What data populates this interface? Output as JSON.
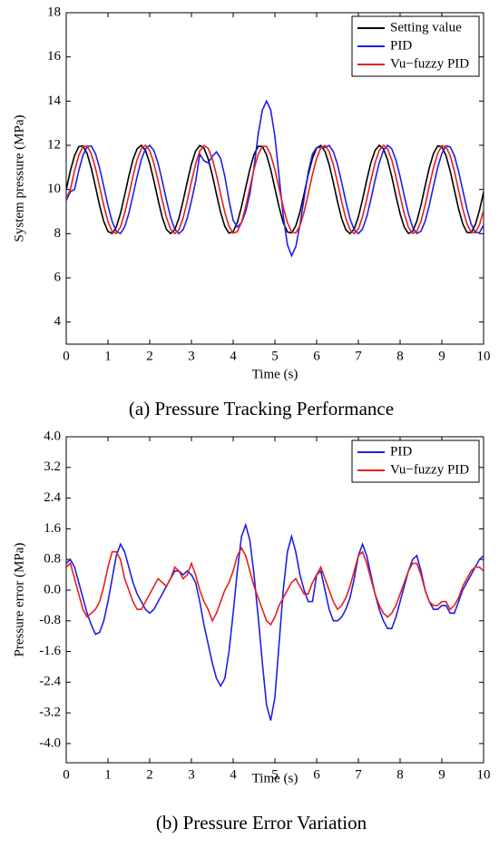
{
  "chart_data": [
    {
      "type": "line",
      "caption": "(a) Pressure Tracking Performance",
      "xlabel": "Time (s)",
      "ylabel": "System pressure (MPa)",
      "xlim": [
        0,
        10
      ],
      "xticks": [
        0,
        1,
        2,
        3,
        4,
        5,
        6,
        7,
        8,
        9,
        10
      ],
      "ylim": [
        3,
        18
      ],
      "yticks": [
        4,
        6,
        8,
        10,
        12,
        14,
        16,
        18
      ],
      "legend": "upper right",
      "grid": false,
      "x": [
        0,
        0.1,
        0.2,
        0.3,
        0.4,
        0.5,
        0.6,
        0.7,
        0.8,
        0.9,
        1,
        1.1,
        1.2,
        1.3,
        1.4,
        1.5,
        1.6,
        1.7,
        1.8,
        1.9,
        2,
        2.1,
        2.2,
        2.3,
        2.4,
        2.5,
        2.6,
        2.7,
        2.8,
        2.9,
        3,
        3.1,
        3.2,
        3.3,
        3.4,
        3.5,
        3.6,
        3.7,
        3.8,
        3.9,
        4,
        4.1,
        4.2,
        4.3,
        4.4,
        4.5,
        4.6,
        4.7,
        4.8,
        4.9,
        5,
        5.1,
        5.2,
        5.3,
        5.4,
        5.5,
        5.6,
        5.7,
        5.8,
        5.9,
        6,
        6.1,
        6.2,
        6.3,
        6.4,
        6.5,
        6.6,
        6.7,
        6.8,
        6.9,
        7,
        7.1,
        7.2,
        7.3,
        7.4,
        7.5,
        7.6,
        7.7,
        7.8,
        7.9,
        8,
        8.1,
        8.2,
        8.3,
        8.4,
        8.5,
        8.6,
        8.7,
        8.8,
        8.9,
        9,
        9.1,
        9.2,
        9.3,
        9.4,
        9.5,
        9.6,
        9.7,
        9.8,
        9.9,
        10
      ],
      "series": [
        {
          "name": "Setting value",
          "color": "#000000",
          "values": [
            10,
            10.85,
            11.54,
            11.94,
            11.97,
            11.62,
            10.97,
            10.13,
            9.27,
            8.55,
            8.1,
            8.01,
            8.3,
            8.92,
            9.74,
            10.6,
            11.36,
            11.85,
            12.0,
            11.76,
            11.19,
            10.4,
            9.53,
            8.74,
            8.2,
            8.0,
            8.18,
            8.7,
            9.48,
            10.35,
            11.15,
            11.74,
            11.99,
            11.87,
            11.39,
            10.65,
            9.79,
            8.96,
            8.33,
            8.02,
            8.09,
            8.51,
            9.22,
            10.08,
            10.92,
            11.59,
            11.95,
            11.95,
            11.57,
            10.9,
            10.05,
            9.2,
            8.5,
            8.08,
            8.03,
            8.35,
            8.98,
            9.81,
            10.68,
            11.41,
            11.88,
            11.99,
            11.72,
            11.13,
            10.32,
            9.45,
            8.68,
            8.17,
            8.0,
            8.21,
            8.76,
            9.55,
            10.42,
            11.21,
            11.77,
            12.0,
            11.84,
            11.34,
            10.58,
            9.71,
            8.9,
            8.29,
            8.01,
            8.11,
            8.56,
            9.29,
            10.16,
            10.99,
            11.63,
            11.97,
            11.93,
            11.53,
            10.83,
            9.98,
            9.13,
            8.45,
            8.06,
            8.04,
            8.39,
            9.05,
            9.88
          ]
        },
        {
          "name": "PID",
          "color": "#1f1fe6",
          "values": [
            9.5,
            9.9,
            10,
            10.85,
            11.54,
            11.94,
            11.97,
            11.62,
            10.97,
            10.13,
            9.27,
            8.55,
            8.1,
            8.01,
            8.3,
            8.92,
            9.74,
            10.6,
            11.36,
            11.85,
            12.0,
            11.76,
            11.19,
            10.4,
            9.53,
            8.74,
            8.2,
            8.0,
            8.18,
            8.7,
            9.48,
            10.35,
            11.6,
            11.3,
            11.2,
            11.5,
            11.7,
            11.4,
            10.6,
            9.5,
            8.6,
            8.3,
            8.5,
            9.0,
            9.8,
            11.0,
            12.5,
            13.6,
            14.0,
            13.6,
            12.4,
            10.6,
            8.8,
            7.5,
            7.0,
            7.4,
            8.4,
            9.6,
            10.8,
            11.6,
            11.9,
            11.9,
            11.9,
            11.99,
            11.72,
            11.13,
            10.32,
            9.45,
            8.68,
            8.17,
            8.0,
            8.21,
            8.76,
            9.55,
            10.42,
            11.21,
            11.77,
            12.0,
            11.84,
            11.34,
            10.58,
            9.71,
            8.9,
            8.29,
            8.01,
            8.11,
            8.56,
            9.29,
            10.16,
            10.99,
            11.63,
            11.97,
            11.93,
            11.53,
            10.83,
            9.98,
            9.13,
            8.45,
            8.06,
            8.04,
            8.39
          ]
        },
        {
          "name": "Vu−fuzzy PID",
          "color": "#e61f1f",
          "values": [
            9.6,
            10,
            10.85,
            11.54,
            11.94,
            11.97,
            11.62,
            10.97,
            10.13,
            9.27,
            8.55,
            8.1,
            8.01,
            8.3,
            8.92,
            9.74,
            10.6,
            11.36,
            11.85,
            12.0,
            11.76,
            11.19,
            10.4,
            9.53,
            8.74,
            8.2,
            8.0,
            8.18,
            8.7,
            9.48,
            10.35,
            11.15,
            11.74,
            11.99,
            11.87,
            11.39,
            10.65,
            9.79,
            8.96,
            8.33,
            8.02,
            8.09,
            8.51,
            9.22,
            10.08,
            10.92,
            11.59,
            11.95,
            11.95,
            11.57,
            10.9,
            10.05,
            9.2,
            8.5,
            8.08,
            8.03,
            8.35,
            8.98,
            9.81,
            10.68,
            11.41,
            11.88,
            11.99,
            11.72,
            11.13,
            10.32,
            9.45,
            8.68,
            8.17,
            8.0,
            8.21,
            8.76,
            9.55,
            10.42,
            11.21,
            11.77,
            12.0,
            11.84,
            11.34,
            10.58,
            9.71,
            8.9,
            8.29,
            8.01,
            8.11,
            8.56,
            9.29,
            10.16,
            10.99,
            11.63,
            11.97,
            11.93,
            11.53,
            10.83,
            9.98,
            9.13,
            8.45,
            8.06,
            8.04,
            8.39,
            9.05
          ]
        }
      ]
    },
    {
      "type": "line",
      "caption": "(b) Pressure Error Variation",
      "xlabel": "Time (s)",
      "ylabel": "Pressure error (MPa)",
      "xlim": [
        0,
        10
      ],
      "xticks": [
        0,
        1,
        2,
        3,
        4,
        5,
        6,
        7,
        8,
        9,
        10
      ],
      "ylim": [
        -4.5,
        4.0
      ],
      "yticks": [
        {
          "value": 4.0,
          "label": "4.0"
        },
        {
          "value": 3.2,
          "label": "3.2"
        },
        {
          "value": 2.4,
          "label": "2.4"
        },
        {
          "value": 1.6,
          "label": "1.6"
        },
        {
          "value": 0.8,
          "label": "0.8"
        },
        {
          "value": 0,
          "label": "0.0"
        },
        {
          "value": -0.8,
          "label": "-0.8"
        },
        {
          "value": -1.6,
          "label": "-1.6"
        },
        {
          "value": -2.4,
          "label": "-2.4"
        },
        {
          "value": -3.2,
          "label": "-3.2"
        },
        {
          "value": -4.0,
          "label": "-4.0"
        }
      ],
      "legend": "upper right",
      "grid": false,
      "x": [
        0,
        0.1,
        0.2,
        0.3,
        0.4,
        0.5,
        0.6,
        0.7,
        0.8,
        0.9,
        1,
        1.1,
        1.2,
        1.3,
        1.4,
        1.5,
        1.6,
        1.7,
        1.8,
        1.9,
        2,
        2.1,
        2.2,
        2.3,
        2.4,
        2.5,
        2.6,
        2.7,
        2.8,
        2.9,
        3,
        3.1,
        3.2,
        3.3,
        3.4,
        3.5,
        3.6,
        3.7,
        3.8,
        3.9,
        4,
        4.1,
        4.2,
        4.3,
        4.4,
        4.5,
        4.6,
        4.7,
        4.8,
        4.9,
        5,
        5.1,
        5.2,
        5.3,
        5.4,
        5.5,
        5.6,
        5.7,
        5.8,
        5.9,
        6,
        6.1,
        6.2,
        6.3,
        6.4,
        6.5,
        6.6,
        6.7,
        6.8,
        6.9,
        7,
        7.1,
        7.2,
        7.3,
        7.4,
        7.5,
        7.6,
        7.7,
        7.8,
        7.9,
        8,
        8.1,
        8.2,
        8.3,
        8.4,
        8.5,
        8.6,
        8.7,
        8.8,
        8.9,
        9,
        9.1,
        9.2,
        9.3,
        9.4,
        9.5,
        9.6,
        9.7,
        9.8,
        9.9,
        10
      ],
      "series": [
        {
          "name": "PID",
          "color": "#1f1fe6",
          "values": [
            0.7,
            0.8,
            0.6,
            0.2,
            -0.2,
            -0.6,
            -0.9,
            -1.15,
            -1.1,
            -0.8,
            -0.3,
            0.3,
            0.9,
            1.2,
            1.0,
            0.6,
            0.2,
            -0.1,
            -0.3,
            -0.5,
            -0.6,
            -0.5,
            -0.3,
            -0.1,
            0.1,
            0.3,
            0.5,
            0.5,
            0.4,
            0.5,
            0.4,
            0.2,
            -0.3,
            -0.9,
            -1.4,
            -1.9,
            -2.3,
            -2.5,
            -2.3,
            -1.6,
            -0.6,
            0.5,
            1.4,
            1.7,
            1.3,
            0.4,
            -0.7,
            -1.9,
            -3.0,
            -3.4,
            -2.8,
            -1.4,
            0.0,
            1.0,
            1.4,
            1.0,
            0.4,
            0.0,
            -0.3,
            -0.3,
            0.4,
            0.5,
            0.0,
            -0.5,
            -0.8,
            -0.8,
            -0.7,
            -0.5,
            -0.2,
            0.3,
            0.9,
            1.2,
            0.9,
            0.4,
            -0.1,
            -0.5,
            -0.8,
            -1.0,
            -1.0,
            -0.7,
            -0.3,
            0.1,
            0.5,
            0.8,
            0.9,
            0.5,
            0.0,
            -0.3,
            -0.5,
            -0.5,
            -0.4,
            -0.4,
            -0.6,
            -0.6,
            -0.3,
            0.0,
            0.2,
            0.4,
            0.6,
            0.8,
            0.9
          ]
        },
        {
          "name": "Vu−fuzzy PID",
          "color": "#e61f1f",
          "values": [
            0.6,
            0.7,
            0.3,
            -0.1,
            -0.5,
            -0.7,
            -0.6,
            -0.5,
            -0.3,
            0.1,
            0.6,
            1.0,
            1.0,
            0.8,
            0.3,
            0.0,
            -0.3,
            -0.5,
            -0.5,
            -0.3,
            -0.1,
            0.1,
            0.3,
            0.2,
            0.1,
            0.3,
            0.6,
            0.5,
            0.3,
            0.4,
            0.7,
            0.4,
            0.0,
            -0.3,
            -0.5,
            -0.8,
            -0.6,
            -0.3,
            0.0,
            0.2,
            0.5,
            0.9,
            1.1,
            0.9,
            0.5,
            0.1,
            -0.2,
            -0.5,
            -0.8,
            -0.9,
            -0.7,
            -0.4,
            -0.2,
            0.0,
            0.2,
            0.3,
            0.1,
            -0.1,
            -0.1,
            0.2,
            0.4,
            0.6,
            0.3,
            0.0,
            -0.3,
            -0.5,
            -0.4,
            -0.2,
            0.1,
            0.5,
            0.9,
            1.0,
            0.7,
            0.3,
            -0.1,
            -0.4,
            -0.6,
            -0.7,
            -0.6,
            -0.4,
            -0.1,
            0.2,
            0.5,
            0.7,
            0.7,
            0.4,
            0.0,
            -0.3,
            -0.4,
            -0.4,
            -0.3,
            -0.3,
            -0.5,
            -0.4,
            -0.2,
            0.1,
            0.3,
            0.5,
            0.6,
            0.6,
            0.5
          ]
        }
      ]
    }
  ]
}
